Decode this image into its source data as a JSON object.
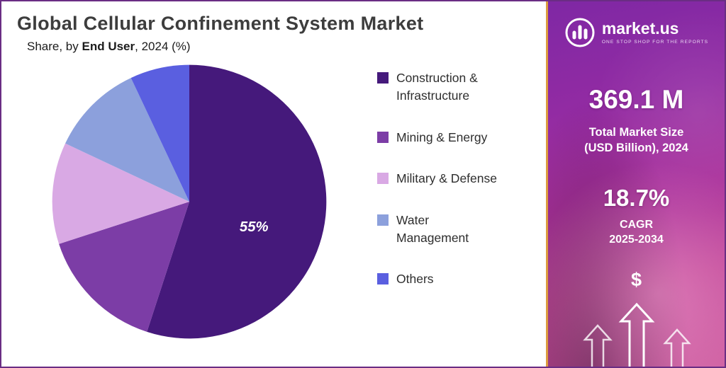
{
  "header": {
    "title": "Global Cellular Confinement System Market",
    "subtitle_prefix": "Share, by ",
    "subtitle_bold": "End User",
    "subtitle_suffix": ", 2024 (%)"
  },
  "chart_data": {
    "type": "pie",
    "title": "Global Cellular Confinement System Market",
    "subtitle": "Share, by End User, 2024 (%)",
    "labels": [
      "Construction & Infrastructure",
      "Mining & Energy",
      "Military & Defense",
      "Water Management",
      "Others"
    ],
    "labels_display": [
      "Construction &\nInfrastructure",
      "Mining & Energy",
      "Military & Defense",
      "Water\nManagement",
      "Others"
    ],
    "values": [
      55,
      15,
      12,
      11,
      7
    ],
    "value_labels": [
      "55%",
      "",
      "",
      "",
      ""
    ],
    "colors": [
      "#45197B",
      "#7C3DA6",
      "#D9A9E4",
      "#8CA0DC",
      "#5A5FE0"
    ],
    "start_angle_deg": -90,
    "direction": "clockwise",
    "legend_position": "right",
    "annotated_share_note": "Only the Construction & Infrastructure slice is labeled (55%); other values estimated from slice angles."
  },
  "sidebar": {
    "logo_text": "market.us",
    "tagline": "ONE STOP SHOP FOR THE REPORTS",
    "market_size_value": "369.1 M",
    "market_size_label": "Total Market Size\n(USD Billion), 2024",
    "cagr_value": "18.7%",
    "cagr_label": "CAGR\n2025-2034",
    "dollar_symbol": "$"
  }
}
